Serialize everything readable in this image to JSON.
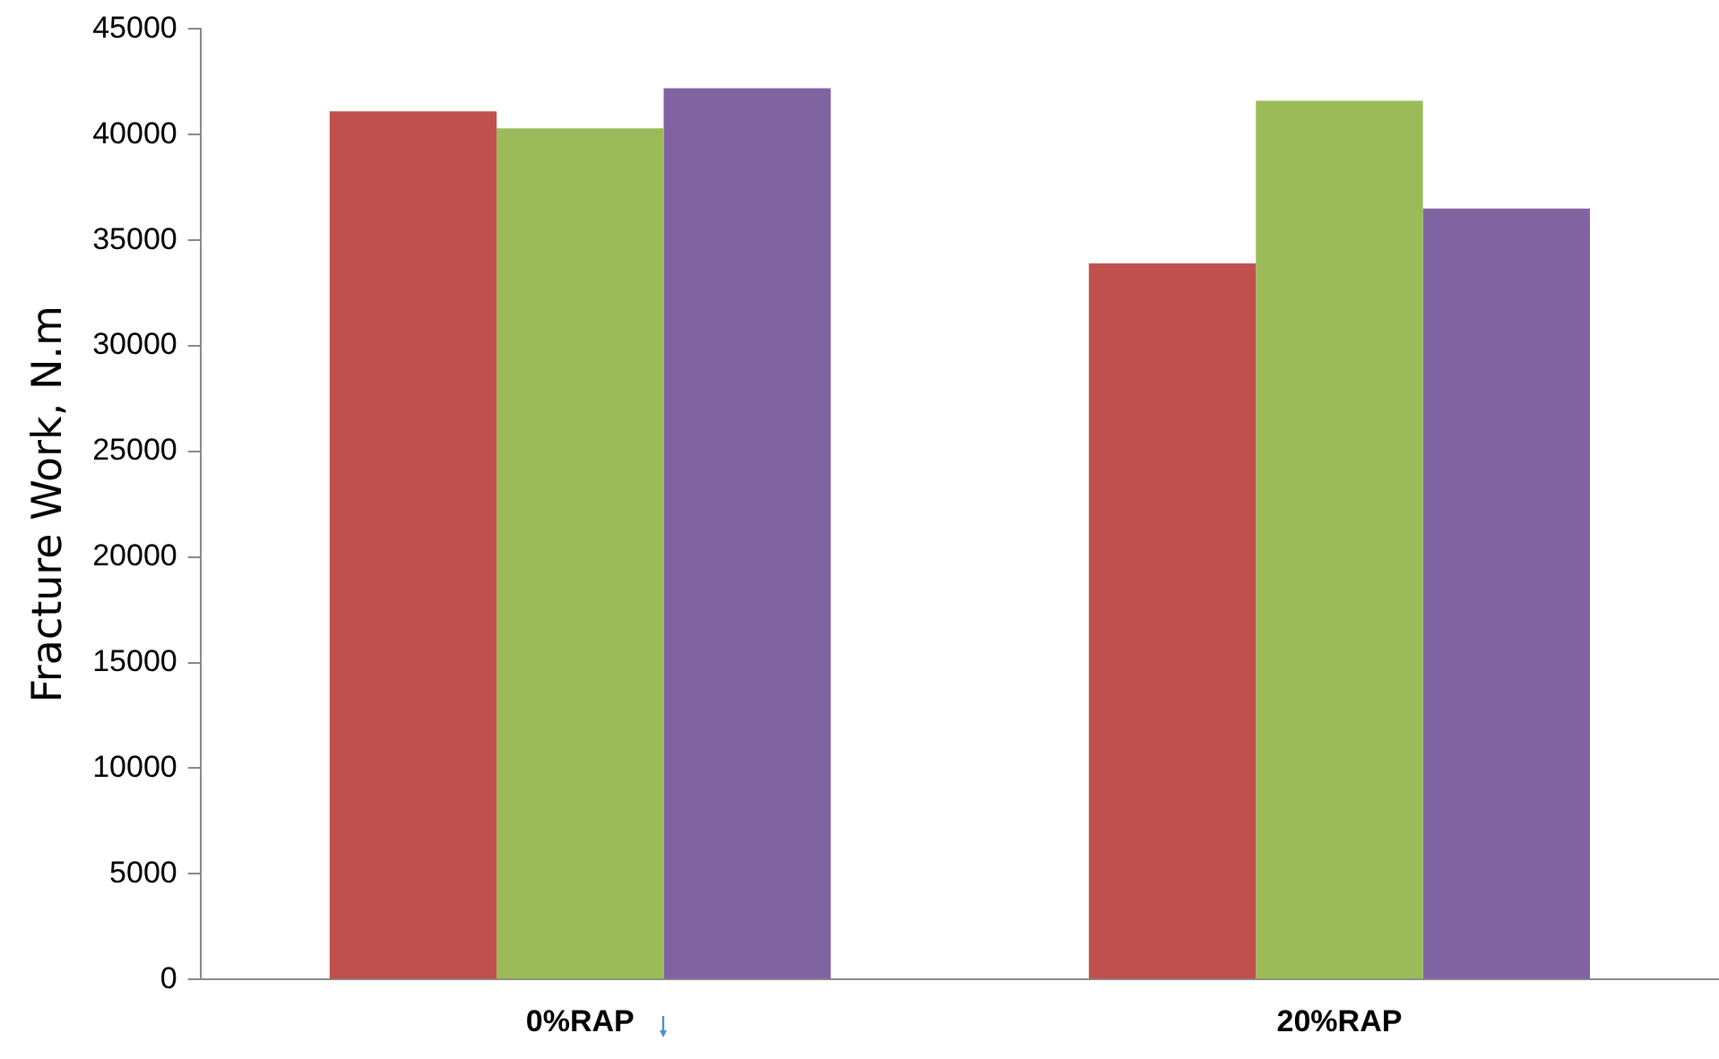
{
  "chart_data": {
    "type": "bar",
    "ylabel": "Fracture Work, N.m",
    "categories": [
      "0%RAP",
      "20%RAP"
    ],
    "series": [
      {
        "color": "#c0504d",
        "values": [
          41100,
          33900
        ]
      },
      {
        "color": "#9bbb59",
        "values": [
          40300,
          41600
        ]
      },
      {
        "color": "#8064a2",
        "values": [
          42200,
          36500
        ]
      }
    ],
    "ylim": [
      0,
      45000
    ],
    "yticks": [
      0,
      5000,
      10000,
      15000,
      20000,
      25000,
      30000,
      35000,
      40000,
      45000
    ],
    "grid": false,
    "legend": false
  }
}
